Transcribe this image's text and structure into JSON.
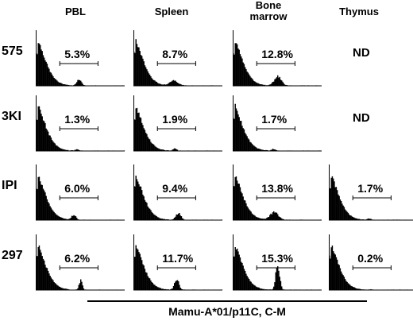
{
  "chart_data": {
    "type": "histogram-grid",
    "columns": [
      "PBL",
      "Spleen",
      "Bone marrow",
      "Thymus"
    ],
    "column_header_lines": [
      [
        "PBL"
      ],
      [
        "Spleen"
      ],
      [
        "Bone",
        "marrow"
      ],
      [
        "Thymus"
      ]
    ],
    "rows": [
      "575",
      "3KI",
      "IPI",
      "297"
    ],
    "xlabel": "Mamu-A*01/p11C, C-M",
    "cells": [
      [
        {
          "value": "5.3%",
          "bump_center": 0.48,
          "bump_height": 0.16,
          "bump_width": 0.07
        },
        {
          "value": "8.7%",
          "bump_center": 0.45,
          "bump_height": 0.12,
          "bump_width": 0.13
        },
        {
          "value": "12.8%",
          "bump_center": 0.5,
          "bump_height": 0.22,
          "bump_width": 0.11
        },
        {
          "value": "ND"
        }
      ],
      [
        {
          "value": "1.3%",
          "bump_center": 0.46,
          "bump_height": 0.03,
          "bump_width": 0.06
        },
        {
          "value": "1.9%",
          "bump_center": 0.46,
          "bump_height": 0.05,
          "bump_width": 0.06
        },
        {
          "value": "1.7%",
          "bump_center": 0.45,
          "bump_height": 0.04,
          "bump_width": 0.06
        },
        {
          "value": "ND"
        }
      ],
      [
        {
          "value": "6.0%",
          "bump_center": 0.42,
          "bump_height": 0.12,
          "bump_width": 0.07
        },
        {
          "value": "9.4%",
          "bump_center": 0.5,
          "bump_height": 0.15,
          "bump_width": 0.08
        },
        {
          "value": "13.8%",
          "bump_center": 0.46,
          "bump_height": 0.18,
          "bump_width": 0.13
        },
        {
          "value": "1.7%",
          "bump_center": 0.45,
          "bump_height": 0.03,
          "bump_width": 0.06
        }
      ],
      [
        {
          "value": "6.2%",
          "bump_center": 0.5,
          "bump_height": 0.22,
          "bump_width": 0.05
        },
        {
          "value": "11.7%",
          "bump_center": 0.48,
          "bump_height": 0.24,
          "bump_width": 0.07
        },
        {
          "value": "15.3%",
          "bump_center": 0.5,
          "bump_height": 0.62,
          "bump_width": 0.06
        },
        {
          "value": "0.2%",
          "bump_center": 0.46,
          "bump_height": 0.01,
          "bump_width": 0.05
        }
      ]
    ]
  }
}
